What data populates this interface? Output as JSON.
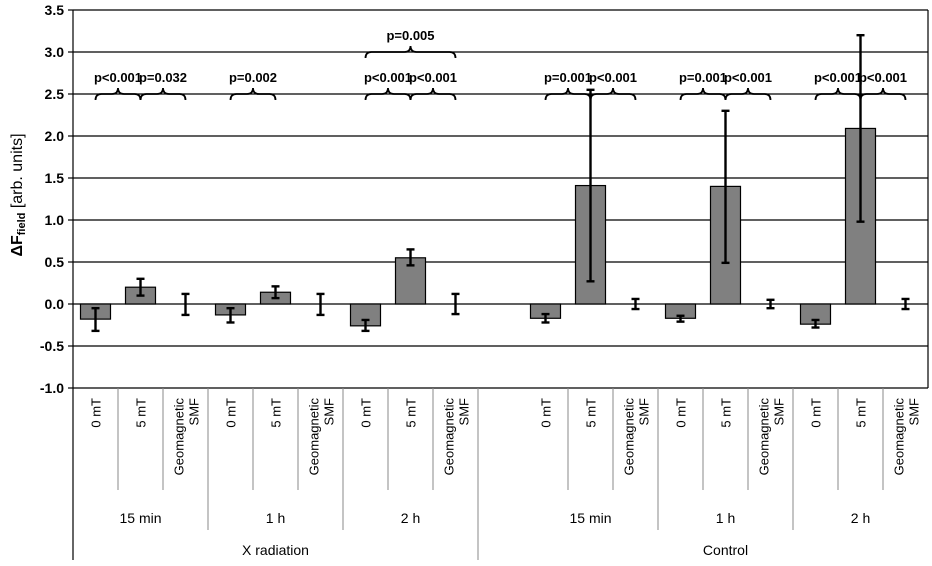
{
  "chart_data": {
    "type": "bar",
    "ylabel": {
      "symbol": "ΔF",
      "subscript": "field",
      "unit": " [arb. units]"
    },
    "ylim": [
      -1.0,
      3.5
    ],
    "yticks": [
      "-1.0",
      "-0.5",
      "0.0",
      "0.5",
      "1.0",
      "1.5",
      "2.0",
      "2.5",
      "3.0",
      "3.5"
    ],
    "ytick_values": [
      -1.0,
      -0.5,
      0.0,
      0.5,
      1.0,
      1.5,
      2.0,
      2.5,
      3.0,
      3.5
    ],
    "grid": true,
    "bar_color": "#808080",
    "groups": [
      {
        "label": "X radiation",
        "subgroups": [
          {
            "label": "15 min",
            "bars": [
              {
                "label": "0 mT",
                "value": -0.18,
                "err_low": -0.32,
                "err_high": -0.05
              },
              {
                "label": "5 mT",
                "value": 0.2,
                "err_low": 0.1,
                "err_high": 0.3
              },
              {
                "label": [
                  "Geomagnetic",
                  "SMF"
                ],
                "value": null,
                "err_low": -0.13,
                "err_high": 0.12
              }
            ]
          },
          {
            "label": "1 h",
            "bars": [
              {
                "label": "0 mT",
                "value": -0.13,
                "err_low": -0.22,
                "err_high": -0.05
              },
              {
                "label": "5 mT",
                "value": 0.14,
                "err_low": 0.07,
                "err_high": 0.21
              },
              {
                "label": [
                  "Geomagnetic",
                  "SMF"
                ],
                "value": null,
                "err_low": -0.13,
                "err_high": 0.12
              }
            ]
          },
          {
            "label": "2 h",
            "bars": [
              {
                "label": "0 mT",
                "value": -0.26,
                "err_low": -0.32,
                "err_high": -0.19
              },
              {
                "label": "5 mT",
                "value": 0.55,
                "err_low": 0.46,
                "err_high": 0.65
              },
              {
                "label": [
                  "Geomagnetic",
                  "SMF"
                ],
                "value": null,
                "err_low": -0.12,
                "err_high": 0.12
              }
            ]
          }
        ]
      },
      {
        "label": "Control",
        "subgroups": [
          {
            "label": "15 min",
            "bars": [
              {
                "label": "0 mT",
                "value": -0.17,
                "err_low": -0.22,
                "err_high": -0.12
              },
              {
                "label": "5 mT",
                "value": 1.41,
                "err_low": 0.27,
                "err_high": 2.55
              },
              {
                "label": [
                  "Geomagnetic",
                  "SMF"
                ],
                "value": null,
                "err_low": -0.06,
                "err_high": 0.06
              }
            ]
          },
          {
            "label": "1 h",
            "bars": [
              {
                "label": "0 mT",
                "value": -0.17,
                "err_low": -0.21,
                "err_high": -0.14
              },
              {
                "label": "5 mT",
                "value": 1.4,
                "err_low": 0.49,
                "err_high": 2.3
              },
              {
                "label": [
                  "Geomagnetic",
                  "SMF"
                ],
                "value": null,
                "err_low": -0.05,
                "err_high": 0.05
              }
            ]
          },
          {
            "label": "2 h",
            "bars": [
              {
                "label": "0 mT",
                "value": -0.24,
                "err_low": -0.28,
                "err_high": -0.19
              },
              {
                "label": "5 mT",
                "value": 2.09,
                "err_low": 0.98,
                "err_high": 3.2
              },
              {
                "label": [
                  "Geomagnetic",
                  "SMF"
                ],
                "value": null,
                "err_low": -0.06,
                "err_high": 0.06
              }
            ]
          }
        ]
      }
    ],
    "annotations": [
      {
        "text": "p<0.001",
        "from": [
          0,
          0,
          0
        ],
        "to": [
          0,
          0,
          1
        ],
        "y": 2.5
      },
      {
        "text": "p=0.032",
        "from": [
          0,
          0,
          1
        ],
        "to": [
          0,
          0,
          2
        ],
        "y": 2.5
      },
      {
        "text": "p=0.002",
        "from": [
          0,
          1,
          0
        ],
        "to": [
          0,
          1,
          1
        ],
        "y": 2.5
      },
      {
        "text": "p<0.001",
        "from": [
          0,
          2,
          0
        ],
        "to": [
          0,
          2,
          1
        ],
        "y": 2.5
      },
      {
        "text": "p<0.001",
        "from": [
          0,
          2,
          1
        ],
        "to": [
          0,
          2,
          2
        ],
        "y": 2.5
      },
      {
        "text": "p=0.005",
        "from": [
          0,
          2,
          0
        ],
        "to": [
          0,
          2,
          2
        ],
        "y": 3.0
      },
      {
        "text": "p=0.001",
        "from": [
          1,
          0,
          0
        ],
        "to": [
          1,
          0,
          1
        ],
        "y": 2.5
      },
      {
        "text": "p<0.001",
        "from": [
          1,
          0,
          1
        ],
        "to": [
          1,
          0,
          2
        ],
        "y": 2.5
      },
      {
        "text": "p=0.001",
        "from": [
          1,
          1,
          0
        ],
        "to": [
          1,
          1,
          1
        ],
        "y": 2.5
      },
      {
        "text": "p<0.001",
        "from": [
          1,
          1,
          1
        ],
        "to": [
          1,
          1,
          2
        ],
        "y": 2.5
      },
      {
        "text": "p<0.001",
        "from": [
          1,
          2,
          0
        ],
        "to": [
          1,
          2,
          1
        ],
        "y": 2.5
      },
      {
        "text": "p<0.001",
        "from": [
          1,
          2,
          1
        ],
        "to": [
          1,
          2,
          2
        ],
        "y": 2.5
      }
    ]
  }
}
